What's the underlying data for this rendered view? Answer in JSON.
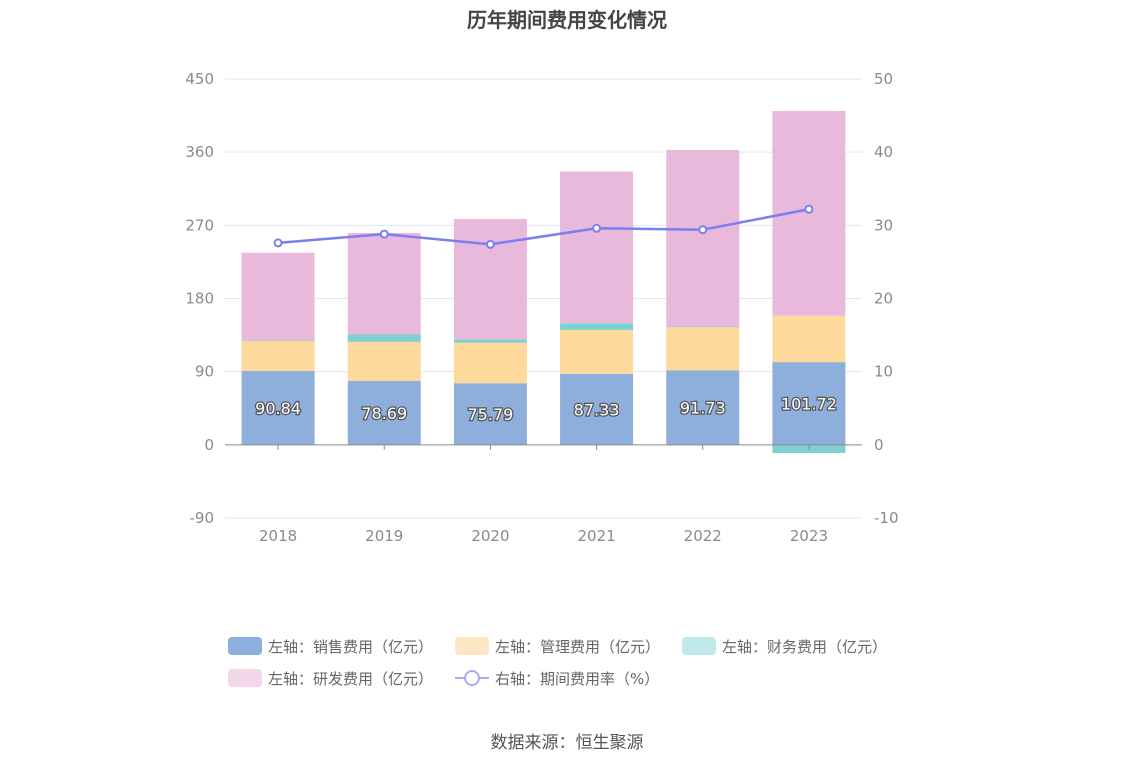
{
  "title": "历年期间费用变化情况",
  "source": "数据来源：恒生聚源",
  "chart_data": {
    "type": "bar",
    "stacked": true,
    "categories": [
      "2018",
      "2019",
      "2020",
      "2021",
      "2022",
      "2023"
    ],
    "left_axis": {
      "min": -90,
      "max": 450,
      "ticks": [
        -90,
        0,
        90,
        180,
        270,
        360,
        450
      ]
    },
    "right_axis": {
      "min": -10,
      "max": 50,
      "ticks": [
        -10,
        0,
        10,
        20,
        30,
        40,
        50
      ]
    },
    "grid": true,
    "series": [
      {
        "name": "左轴：销售费用（亿元）",
        "axis": "left",
        "type": "bar",
        "color": "#8eaedc",
        "values": [
          90.84,
          78.69,
          75.79,
          87.33,
          91.73,
          101.72
        ],
        "show_labels": true
      },
      {
        "name": "左轴：管理费用（亿元）",
        "axis": "left",
        "type": "bar",
        "color": "#fdd99b",
        "values": [
          37,
          48,
          50,
          54,
          53,
          57
        ]
      },
      {
        "name": "左轴：财务费用（亿元）",
        "axis": "left",
        "type": "bar",
        "color": "#7dd1d0",
        "values": [
          0.5,
          9,
          4,
          8,
          1,
          -10
        ]
      },
      {
        "name": "左轴：研发费用（亿元）",
        "axis": "left",
        "type": "bar",
        "color": "#e8b9db",
        "values": [
          108,
          125,
          148,
          187,
          217,
          252
        ]
      },
      {
        "name": "右轴：期间费用率（%）",
        "axis": "right",
        "type": "line",
        "color": "#7b7ff0",
        "values": [
          27.6,
          28.8,
          27.4,
          29.6,
          29.4,
          32.2
        ]
      }
    ],
    "legend": {
      "position": "bottom",
      "items": [
        {
          "label": "左轴：销售费用（亿元）",
          "color": "#8eaedc",
          "shape": "rect"
        },
        {
          "label": "左轴：管理费用（亿元）",
          "color": "#fde6c4",
          "shape": "rect"
        },
        {
          "label": "左轴：财务费用（亿元）",
          "color": "#c2e9e9",
          "shape": "rect"
        },
        {
          "label": "左轴：研发费用（亿元）",
          "color": "#f3d8ea",
          "shape": "rect"
        },
        {
          "label": "右轴：期间费用率（%）",
          "color": "#a9abf4",
          "shape": "line"
        }
      ]
    }
  }
}
